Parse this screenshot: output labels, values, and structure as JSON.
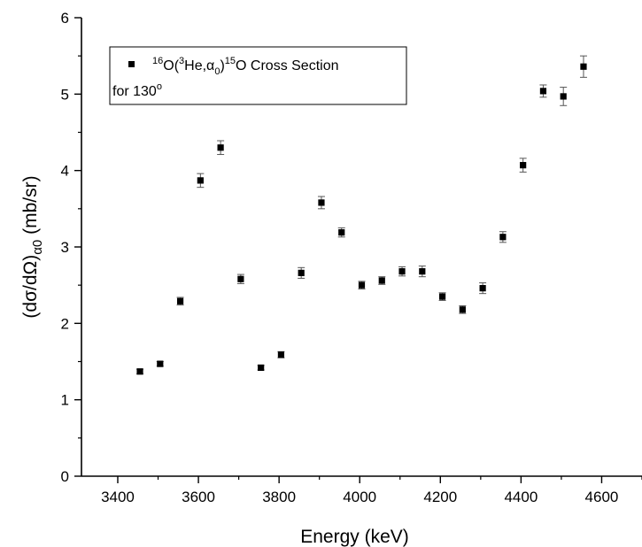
{
  "chart_data": {
    "type": "scatter",
    "xlabel": "Energy (keV)",
    "ylabel_parts": {
      "main": "(dσ/dΩ)",
      "sub": "α0",
      "unit": "  (mb/sr)"
    },
    "xlim": [
      3310,
      4700
    ],
    "ylim": [
      0,
      6
    ],
    "xticks": [
      3400,
      3600,
      3800,
      4000,
      4200,
      4400,
      4600
    ],
    "yticks": [
      0,
      1,
      2,
      3,
      4,
      5,
      6
    ],
    "x_minor_step": 100,
    "y_minor_step": 0.5,
    "grid": false,
    "legend": {
      "placement": "top-left",
      "series_label_parts": [
        {
          "text": "16",
          "style": "sup"
        },
        {
          "text": "O(",
          "style": "normal"
        },
        {
          "text": "3",
          "style": "sup"
        },
        {
          "text": "He,α",
          "style": "normal"
        },
        {
          "text": "0",
          "style": "sub"
        },
        {
          "text": ")",
          "style": "normal"
        },
        {
          "text": "15",
          "style": "sup"
        },
        {
          "text": "O Cross Section",
          "style": "normal"
        }
      ],
      "note_parts": [
        {
          "text": "for 130",
          "style": "normal"
        },
        {
          "text": "o",
          "style": "sup"
        }
      ]
    },
    "series": [
      {
        "marker": "square",
        "color": "#000000",
        "errorbar_color": "#555555",
        "points": [
          {
            "x": 3455,
            "y": 1.37,
            "err": 0.03
          },
          {
            "x": 3505,
            "y": 1.47,
            "err": 0.03
          },
          {
            "x": 3555,
            "y": 2.29,
            "err": 0.05
          },
          {
            "x": 3605,
            "y": 3.87,
            "err": 0.09
          },
          {
            "x": 3655,
            "y": 4.3,
            "err": 0.09
          },
          {
            "x": 3705,
            "y": 2.58,
            "err": 0.06
          },
          {
            "x": 3755,
            "y": 1.42,
            "err": 0.03
          },
          {
            "x": 3805,
            "y": 1.59,
            "err": 0.04
          },
          {
            "x": 3855,
            "y": 2.66,
            "err": 0.07
          },
          {
            "x": 3905,
            "y": 3.58,
            "err": 0.08
          },
          {
            "x": 3955,
            "y": 3.19,
            "err": 0.06
          },
          {
            "x": 4005,
            "y": 2.5,
            "err": 0.05
          },
          {
            "x": 4055,
            "y": 2.56,
            "err": 0.05
          },
          {
            "x": 4105,
            "y": 2.68,
            "err": 0.06
          },
          {
            "x": 4155,
            "y": 2.68,
            "err": 0.07
          },
          {
            "x": 4205,
            "y": 2.35,
            "err": 0.05
          },
          {
            "x": 4255,
            "y": 2.18,
            "err": 0.05
          },
          {
            "x": 4305,
            "y": 2.46,
            "err": 0.07
          },
          {
            "x": 4355,
            "y": 3.13,
            "err": 0.07
          },
          {
            "x": 4405,
            "y": 4.07,
            "err": 0.09
          },
          {
            "x": 4455,
            "y": 5.04,
            "err": 0.08
          },
          {
            "x": 4505,
            "y": 4.97,
            "err": 0.12
          },
          {
            "x": 4555,
            "y": 5.36,
            "err": 0.14
          }
        ]
      }
    ]
  }
}
